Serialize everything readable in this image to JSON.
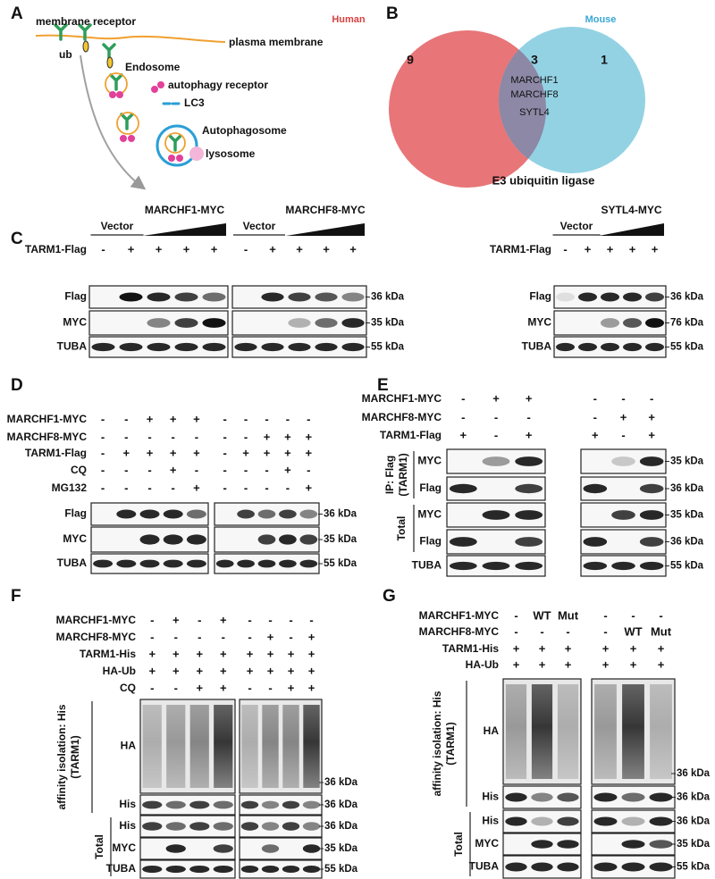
{
  "panel_a": {
    "letter": "A",
    "labels": [
      "membrane receptor",
      "plasma membrane",
      "ub",
      "Endosome",
      "autophagy receptor",
      "LC3",
      "Autophagosome",
      "lysosome"
    ]
  },
  "panel_b": {
    "letter": "B",
    "sets": [
      "Human",
      "Mouse"
    ],
    "counts": [
      9,
      3,
      1
    ],
    "shared_genes": [
      "MARCHF1",
      "MARCHF8",
      "SYTL4"
    ],
    "caption": "E3 ubiquitin ligase"
  },
  "panel_c": {
    "letter": "C",
    "headers": [
      "Vector",
      "MARCHF1-MYC",
      "Vector",
      "MARCHF8-MYC",
      "Vector",
      "SYTL4-MYC"
    ],
    "groups": [
      {
        "treatments": [
          {
            "label": "TARM1-Flag",
            "blocks": [
              [
                "-",
                "+",
                "+",
                "+",
                "+"
              ],
              [
                "-",
                "+",
                "+",
                "+",
                "+"
              ]
            ]
          }
        ],
        "blots": [
          "Flag",
          "MYC",
          "TUBA"
        ],
        "markers": [
          "36 kDa",
          "35 kDa",
          "55 kDa"
        ]
      },
      {
        "treatments": [
          {
            "label": "TARM1-Flag",
            "blocks": [
              [
                "-",
                "+",
                "+",
                "+",
                "+"
              ]
            ]
          }
        ],
        "blots": [
          "Flag",
          "MYC",
          "TUBA"
        ],
        "markers": [
          "36 kDa",
          "76 kDa",
          "55 kDa"
        ]
      }
    ]
  },
  "panel_d": {
    "letter": "D",
    "groups": [
      {
        "treatments": [
          {
            "label": "MARCHF1-MYC",
            "blocks": [
              [
                "-",
                "-",
                "+",
                "+",
                "+"
              ],
              [
                "-",
                "-",
                "-",
                "-",
                "-"
              ]
            ]
          },
          {
            "label": "MARCHF8-MYC",
            "blocks": [
              [
                "-",
                "-",
                "-",
                "-",
                "-"
              ],
              [
                "-",
                "-",
                "+",
                "+",
                "+"
              ]
            ]
          },
          {
            "label": "TARM1-Flag",
            "blocks": [
              [
                "-",
                "+",
                "+",
                "+",
                "+"
              ],
              [
                "-",
                "+",
                "+",
                "+",
                "+"
              ]
            ]
          },
          {
            "label": "CQ",
            "blocks": [
              [
                "-",
                "-",
                "-",
                "+",
                "-"
              ],
              [
                "-",
                "-",
                "-",
                "+",
                "-"
              ]
            ]
          },
          {
            "label": "MG132",
            "blocks": [
              [
                "-",
                "-",
                "-",
                "-",
                "+"
              ],
              [
                "-",
                "-",
                "-",
                "-",
                "+"
              ]
            ]
          }
        ],
        "blots": [
          "Flag",
          "MYC",
          "TUBA"
        ],
        "markers": [
          "36 kDa",
          "35 kDa",
          "55 kDa"
        ]
      }
    ]
  },
  "panel_e": {
    "letter": "E",
    "groups": [
      {
        "treatments": [
          {
            "label": "MARCHF1-MYC",
            "blocks": [
              [
                "-",
                "+",
                "+"
              ],
              [
                "-",
                "-",
                "-"
              ]
            ]
          },
          {
            "label": "MARCHF8-MYC",
            "blocks": [
              [
                "-",
                "-",
                "-"
              ],
              [
                "-",
                "+",
                "+"
              ]
            ]
          },
          {
            "label": "TARM1-Flag",
            "blocks": [
              [
                "+",
                "-",
                "+"
              ],
              [
                "+",
                "-",
                "+"
              ]
            ]
          }
        ],
        "side_labels": [
          [
            "IP: Flag",
            "(TARM1)"
          ],
          [
            "Total"
          ]
        ],
        "blots": [
          "MYC",
          "Flag",
          "MYC",
          "Flag",
          "TUBA"
        ],
        "markers": [
          "35 kDa",
          "36 kDa",
          "35 kDa",
          "36 kDa",
          "55 kDa"
        ]
      }
    ]
  },
  "panel_f": {
    "letter": "F",
    "groups": [
      {
        "treatments": [
          {
            "label": "MARCHF1-MYC",
            "blocks": [
              [
                "-",
                "+",
                "-",
                "+"
              ],
              [
                "-",
                "-",
                "-",
                "-"
              ]
            ]
          },
          {
            "label": "MARCHF8-MYC",
            "blocks": [
              [
                "-",
                "-",
                "-",
                "-"
              ],
              [
                "-",
                "+",
                "-",
                "+"
              ]
            ]
          },
          {
            "label": "TARM1-His",
            "blocks": [
              [
                "+",
                "+",
                "+",
                "+"
              ],
              [
                "+",
                "+",
                "+",
                "+"
              ]
            ]
          },
          {
            "label": "HA-Ub",
            "blocks": [
              [
                "+",
                "+",
                "+",
                "+"
              ],
              [
                "+",
                "+",
                "+",
                "+"
              ]
            ]
          },
          {
            "label": "CQ",
            "blocks": [
              [
                "-",
                "-",
                "+",
                "+"
              ],
              [
                "-",
                "-",
                "+",
                "+"
              ]
            ]
          }
        ],
        "side_labels": [
          [
            "affinity isolation: His",
            "(TARM1)"
          ],
          [
            "Total"
          ]
        ],
        "blots": [
          "HA",
          "His",
          "His",
          "MYC",
          "TUBA"
        ],
        "markers": [
          "36 kDa",
          "36 kDa",
          "36 kDa",
          "35 kDa",
          "55 kDa"
        ]
      }
    ]
  },
  "panel_g": {
    "letter": "G",
    "groups": [
      {
        "treatments": [
          {
            "label": "MARCHF1-MYC",
            "blocks": [
              [
                "-",
                "WT",
                "Mut"
              ],
              [
                "-",
                "-",
                "-"
              ]
            ]
          },
          {
            "label": "MARCHF8-MYC",
            "blocks": [
              [
                "-",
                "-",
                "-"
              ],
              [
                "-",
                "WT",
                "Mut"
              ]
            ]
          },
          {
            "label": "TARM1-His",
            "blocks": [
              [
                "+",
                "+",
                "+"
              ],
              [
                "+",
                "+",
                "+"
              ]
            ]
          },
          {
            "label": "HA-Ub",
            "blocks": [
              [
                "+",
                "+",
                "+"
              ],
              [
                "+",
                "+",
                "+"
              ]
            ]
          }
        ],
        "side_labels": [
          [
            "affinity isolation: His",
            "(TARM1)"
          ],
          [
            "Total"
          ]
        ],
        "blots": [
          "HA",
          "His",
          "His",
          "MYC",
          "TUBA"
        ],
        "markers": [
          "36 kDa",
          "36 kDa",
          "36 kDa",
          "35 kDa",
          "55 kDa"
        ]
      }
    ]
  }
}
